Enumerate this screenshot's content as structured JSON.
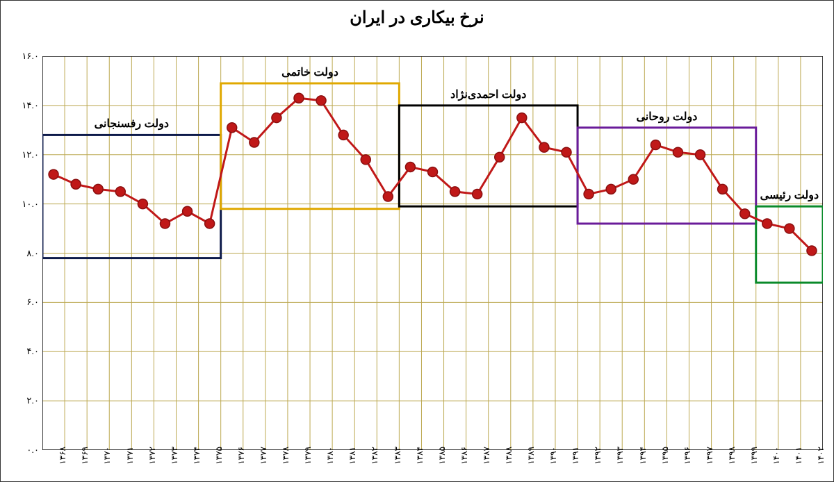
{
  "chart": {
    "type": "line",
    "title": "نرخ بیکاری در ایران",
    "title_fontsize": 24,
    "background_color": "#ffffff",
    "grid_color": "#bca850",
    "grid_width": 1,
    "axis_color": "#000000",
    "ylim": [
      0,
      16
    ],
    "ytick_step": 2,
    "yticks": [
      "۰.۰",
      "۲.۰",
      "۴.۰",
      "۶.۰",
      "۸.۰",
      "۱۰.۰",
      "۱۲.۰",
      "۱۴.۰",
      "۱۶.۰"
    ],
    "xlabels": [
      "۱۳۶۸",
      "۱۳۶۹",
      "۱۳۷۰",
      "۱۳۷۱",
      "۱۳۷۲",
      "۱۳۷۳",
      "۱۳۷۴",
      "۱۳۷۵",
      "۱۳۷۶",
      "۱۳۷۷",
      "۱۳۷۸",
      "۱۳۷۹",
      "۱۳۸۰",
      "۱۳۸۱",
      "۱۳۸۲",
      "۱۳۸۳",
      "۱۳۸۴",
      "۱۳۸۵",
      "۱۳۸۶",
      "۱۳۸۷",
      "۱۳۸۸",
      "۱۳۸۹",
      "۱۳۹۰",
      "۱۳۹۱",
      "۱۳۹۲",
      "۱۳۹۳",
      "۱۳۹۴",
      "۱۳۹۵",
      "۱۳۹۶",
      "۱۳۹۷",
      "۱۳۹۸",
      "۱۳۹۹",
      "۱۴۰۰",
      "۱۴۰۱",
      "۱۴۰۲"
    ],
    "values": [
      11.2,
      10.8,
      10.6,
      10.5,
      10.0,
      9.2,
      9.7,
      9.2,
      13.1,
      12.5,
      13.5,
      14.3,
      14.2,
      12.8,
      11.8,
      10.3,
      11.5,
      11.3,
      10.5,
      10.4,
      11.9,
      13.5,
      12.3,
      12.1,
      10.4,
      10.6,
      11.0,
      12.4,
      12.1,
      12.0,
      10.6,
      9.6,
      9.2,
      9.0,
      8.1
    ],
    "line_color": "#c01818",
    "line_width": 3,
    "marker_fill": "#c01818",
    "marker_stroke": "#8a0f0f",
    "marker_radius": 7,
    "periods": [
      {
        "label": "دولت رفسنجانی",
        "start_idx": 0,
        "end_idx": 8,
        "ymin": 7.8,
        "ymax": 12.8,
        "color": "#0d1a4a",
        "stroke_width": 3
      },
      {
        "label": "دولت خاتمی",
        "start_idx": 8,
        "end_idx": 16,
        "ymin": 9.8,
        "ymax": 14.9,
        "color": "#e0a800",
        "stroke_width": 3
      },
      {
        "label": "دولت احمدی‌نژاد",
        "start_idx": 16,
        "end_idx": 24,
        "ymin": 9.9,
        "ymax": 14.0,
        "color": "#000000",
        "stroke_width": 3
      },
      {
        "label": "دولت روحانی",
        "start_idx": 24,
        "end_idx": 32,
        "ymin": 9.2,
        "ymax": 13.1,
        "color": "#6a1b9a",
        "stroke_width": 3
      },
      {
        "label": "دولت رئیسی",
        "start_idx": 32,
        "end_idx": 35,
        "ymin": 6.8,
        "ymax": 9.9,
        "color": "#0a8a2a",
        "stroke_width": 3
      }
    ],
    "label_fontsize": 12
  }
}
